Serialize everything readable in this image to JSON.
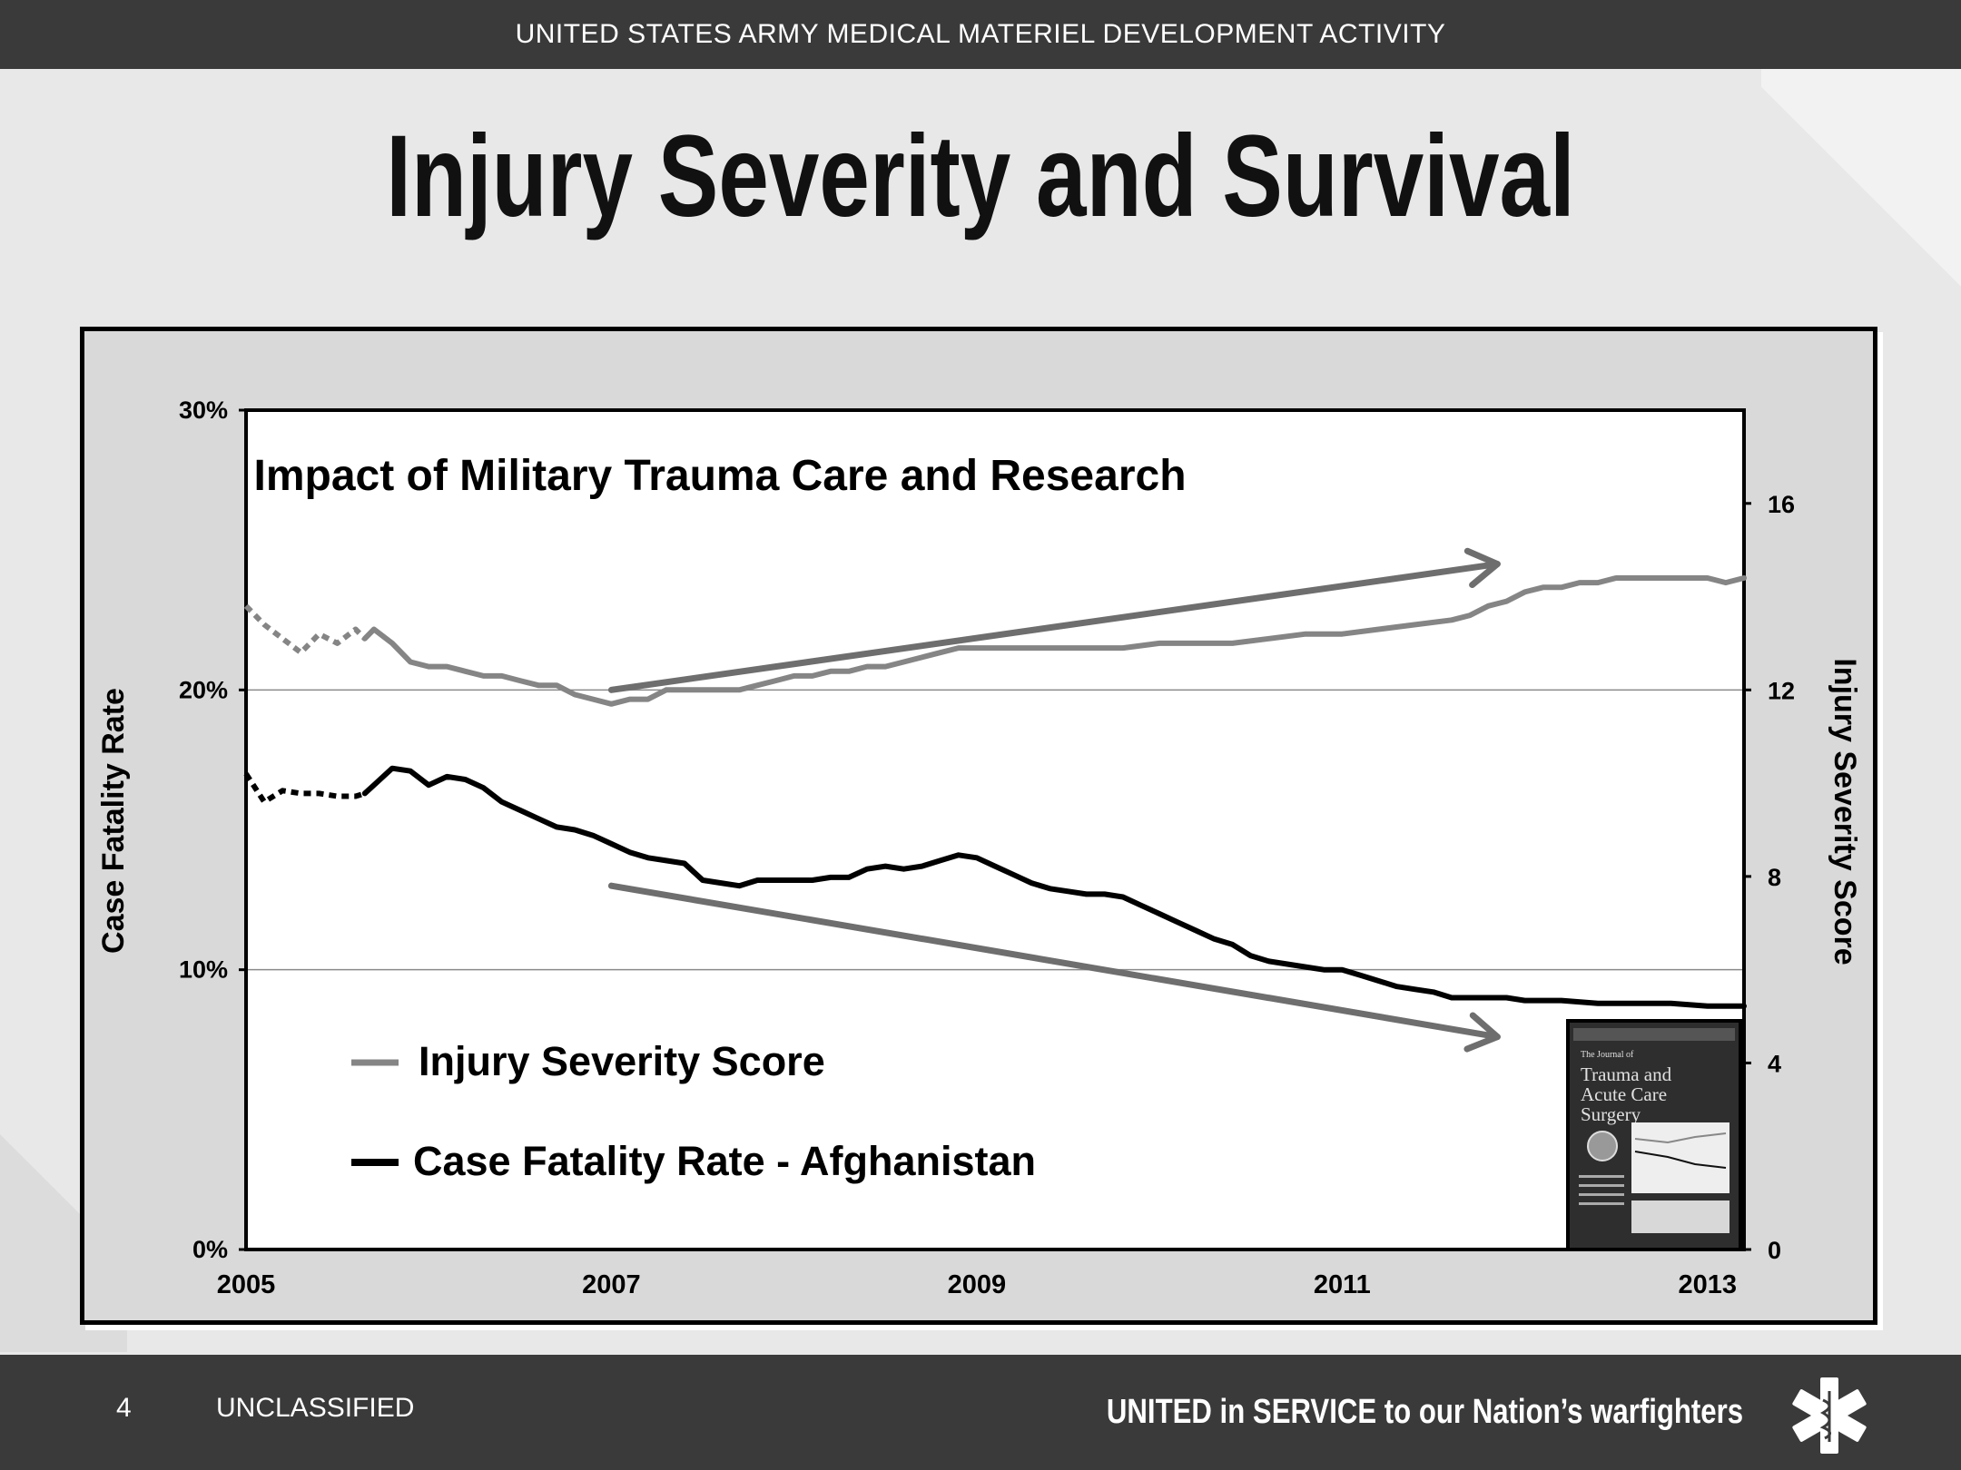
{
  "header": {
    "organization": "UNITED STATES ARMY MEDICAL MATERIEL DEVELOPMENT ACTIVITY"
  },
  "slide": {
    "title": "Injury Severity and Survival"
  },
  "footer": {
    "page_number": "4",
    "classification": "UNCLASSIFIED",
    "tagline": "UNITED in SERVICE to our Nation’s warfighters",
    "logo_icon": "star-of-life-icon"
  },
  "colors": {
    "top_bar": "#3a3a3a",
    "background": "#e8e8e8",
    "iss_series": "#858585",
    "cfr_series": "#000000",
    "arrow": "#6e6e6e"
  },
  "chart_data": {
    "type": "line",
    "title": "Impact of Military Trauma Care and Research",
    "xlabel": "",
    "ylabel_left": "Case Fatality Rate",
    "ylabel_right": "Injury Severity Score",
    "xlim": [
      2005,
      2013.2
    ],
    "xticks": [
      "2005",
      "2007",
      "2009",
      "2011",
      "2013"
    ],
    "ylim_left": [
      0,
      30
    ],
    "yticks_left": [
      "0%",
      "10%",
      "20%",
      "30%"
    ],
    "ylim_right": [
      0,
      18
    ],
    "yticks_right": [
      "0",
      "4",
      "8",
      "12",
      "16"
    ],
    "gridlines_left": [
      10,
      20
    ],
    "legend_placement": "bottom-left",
    "series": [
      {
        "name": "Injury Severity Score",
        "axis": "right",
        "color": "#858585",
        "dashed_until": 2005.65,
        "x": [
          2005.0,
          2005.1,
          2005.2,
          2005.3,
          2005.4,
          2005.5,
          2005.6,
          2005.65,
          2005.7,
          2005.8,
          2005.9,
          2006.0,
          2006.1,
          2006.2,
          2006.3,
          2006.4,
          2006.5,
          2006.6,
          2006.7,
          2006.8,
          2006.9,
          2007.0,
          2007.1,
          2007.2,
          2007.3,
          2007.4,
          2007.5,
          2007.6,
          2007.7,
          2007.8,
          2007.9,
          2008.0,
          2008.1,
          2008.2,
          2008.3,
          2008.4,
          2008.5,
          2008.6,
          2008.7,
          2008.8,
          2008.9,
          2009.0,
          2009.2,
          2009.4,
          2009.6,
          2009.8,
          2010.0,
          2010.2,
          2010.4,
          2010.6,
          2010.8,
          2011.0,
          2011.2,
          2011.4,
          2011.6,
          2011.7,
          2011.8,
          2011.9,
          2012.0,
          2012.1,
          2012.2,
          2012.3,
          2012.4,
          2012.5,
          2012.6,
          2012.8,
          2013.0,
          2013.1,
          2013.2
        ],
        "values": [
          13.8,
          13.4,
          13.1,
          12.8,
          13.2,
          13.0,
          13.3,
          13.1,
          13.3,
          13.0,
          12.6,
          12.5,
          12.5,
          12.4,
          12.3,
          12.3,
          12.2,
          12.1,
          12.1,
          11.9,
          11.8,
          11.7,
          11.8,
          11.8,
          12.0,
          12.0,
          12.0,
          12.0,
          12.0,
          12.1,
          12.2,
          12.3,
          12.3,
          12.4,
          12.4,
          12.5,
          12.5,
          12.6,
          12.7,
          12.8,
          12.9,
          12.9,
          12.9,
          12.9,
          12.9,
          12.9,
          13.0,
          13.0,
          13.0,
          13.1,
          13.2,
          13.2,
          13.3,
          13.4,
          13.5,
          13.6,
          13.8,
          13.9,
          14.1,
          14.2,
          14.2,
          14.3,
          14.3,
          14.4,
          14.4,
          14.4,
          14.4,
          14.3,
          14.4
        ]
      },
      {
        "name": "Case Fatality Rate - Afghanistan",
        "axis": "left",
        "color": "#000000",
        "dashed_until": 2005.65,
        "x": [
          2005.0,
          2005.1,
          2005.2,
          2005.3,
          2005.4,
          2005.5,
          2005.6,
          2005.65,
          2005.7,
          2005.8,
          2005.9,
          2006.0,
          2006.1,
          2006.2,
          2006.3,
          2006.4,
          2006.5,
          2006.6,
          2006.7,
          2006.8,
          2006.9,
          2007.0,
          2007.1,
          2007.2,
          2007.3,
          2007.4,
          2007.5,
          2007.6,
          2007.7,
          2007.8,
          2007.9,
          2008.0,
          2008.1,
          2008.2,
          2008.3,
          2008.4,
          2008.5,
          2008.6,
          2008.7,
          2008.8,
          2008.9,
          2009.0,
          2009.1,
          2009.2,
          2009.3,
          2009.4,
          2009.5,
          2009.6,
          2009.7,
          2009.8,
          2009.9,
          2010.0,
          2010.1,
          2010.2,
          2010.3,
          2010.4,
          2010.5,
          2010.6,
          2010.7,
          2010.8,
          2010.9,
          2011.0,
          2011.1,
          2011.2,
          2011.3,
          2011.4,
          2011.5,
          2011.6,
          2011.7,
          2011.8,
          2011.9,
          2012.0,
          2012.2,
          2012.4,
          2012.6,
          2012.8,
          2013.0,
          2013.2
        ],
        "values": [
          17.0,
          16.0,
          16.4,
          16.3,
          16.3,
          16.2,
          16.2,
          16.3,
          16.6,
          17.2,
          17.1,
          16.6,
          16.9,
          16.8,
          16.5,
          16.0,
          15.7,
          15.4,
          15.1,
          15.0,
          14.8,
          14.5,
          14.2,
          14.0,
          13.9,
          13.8,
          13.2,
          13.1,
          13.0,
          13.2,
          13.2,
          13.2,
          13.2,
          13.3,
          13.3,
          13.6,
          13.7,
          13.6,
          13.7,
          13.9,
          14.1,
          14.0,
          13.7,
          13.4,
          13.1,
          12.9,
          12.8,
          12.7,
          12.7,
          12.6,
          12.3,
          12.0,
          11.7,
          11.4,
          11.1,
          10.9,
          10.5,
          10.3,
          10.2,
          10.1,
          10.0,
          10.0,
          9.8,
          9.6,
          9.4,
          9.3,
          9.2,
          9.0,
          9.0,
          9.0,
          9.0,
          8.9,
          8.9,
          8.8,
          8.8,
          8.8,
          8.7,
          8.7
        ]
      }
    ],
    "annotations": [
      {
        "type": "arrow",
        "direction": "up",
        "x_start": 2007.0,
        "y_start_left": 20.0,
        "x_end": 2011.85,
        "y_end_left": 24.5
      },
      {
        "type": "arrow",
        "direction": "down",
        "x_start": 2007.0,
        "y_start_left": 13.0,
        "x_end": 2011.85,
        "y_end_left": 7.6
      }
    ],
    "inset_image": {
      "description_text": "The Journal of Trauma and Acute Care Surgery"
    }
  }
}
